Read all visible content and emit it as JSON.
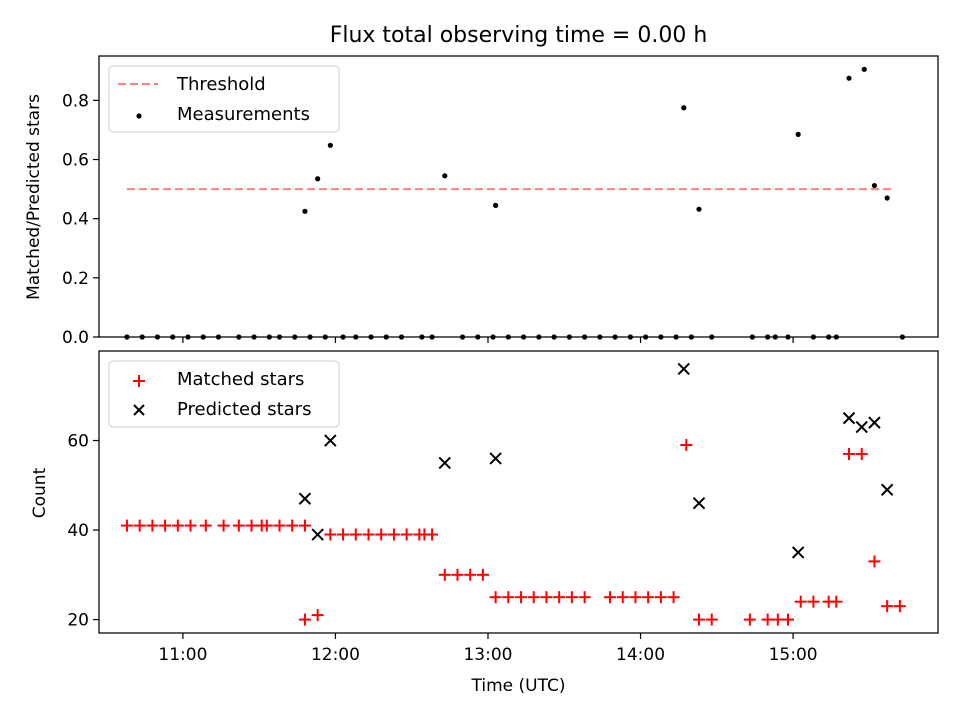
{
  "title": "Flux total observing time = 0.00 h",
  "chart_data": [
    {
      "type": "scatter",
      "ylabel": "Matched/Predicted stars",
      "ylim": [
        0,
        0.95
      ],
      "yticks": [
        0.0,
        0.2,
        0.4,
        0.6,
        0.8
      ],
      "ytick_labels": [
        "0.0",
        "0.2",
        "0.4",
        "0.6",
        "0.8"
      ],
      "legend": {
        "placement": "upper-left",
        "entries": [
          {
            "label": "Threshold",
            "style": "dashed-line",
            "color": "#ff7f7f"
          },
          {
            "label": "Measurements",
            "style": "dot",
            "color": "#000000"
          }
        ]
      },
      "threshold": {
        "name": "Threshold",
        "value": 0.5,
        "x_range": [
          "10:38",
          "15:40"
        ],
        "color": "#ff7f7f"
      },
      "series": [
        {
          "name": "Measurements",
          "marker": "dot",
          "color": "#000000",
          "points": [
            [
              "10:38",
              0
            ],
            [
              "10:44",
              0
            ],
            [
              "10:50",
              0
            ],
            [
              "10:56",
              0
            ],
            [
              "11:02",
              0
            ],
            [
              "11:08",
              0
            ],
            [
              "11:14",
              0
            ],
            [
              "11:22",
              0
            ],
            [
              "11:28",
              0
            ],
            [
              "11:34",
              0
            ],
            [
              "11:38",
              0
            ],
            [
              "11:44",
              0
            ],
            [
              "11:50",
              0
            ],
            [
              "11:56",
              0
            ],
            [
              "11:48",
              0.425
            ],
            [
              "11:53",
              0.535
            ],
            [
              "11:58",
              0.648
            ],
            [
              "12:03",
              0
            ],
            [
              "12:08",
              0
            ],
            [
              "12:14",
              0
            ],
            [
              "12:20",
              0
            ],
            [
              "12:26",
              0
            ],
            [
              "12:34",
              0
            ],
            [
              "12:38",
              0
            ],
            [
              "12:43",
              0.545
            ],
            [
              "12:50",
              0
            ],
            [
              "12:56",
              0
            ],
            [
              "13:02",
              0
            ],
            [
              "13:03",
              0.445
            ],
            [
              "13:08",
              0
            ],
            [
              "13:14",
              0
            ],
            [
              "13:20",
              0
            ],
            [
              "13:26",
              0
            ],
            [
              "13:32",
              0
            ],
            [
              "13:38",
              0
            ],
            [
              "13:44",
              0
            ],
            [
              "13:50",
              0
            ],
            [
              "13:56",
              0
            ],
            [
              "14:02",
              0
            ],
            [
              "14:08",
              0
            ],
            [
              "14:14",
              0
            ],
            [
              "14:20",
              0
            ],
            [
              "14:17",
              0.775
            ],
            [
              "14:23",
              0.432
            ],
            [
              "14:28",
              0
            ],
            [
              "14:44",
              0
            ],
            [
              "14:50",
              0
            ],
            [
              "14:53",
              0
            ],
            [
              "14:58",
              0
            ],
            [
              "15:02",
              0.685
            ],
            [
              "15:08",
              0
            ],
            [
              "15:14",
              0
            ],
            [
              "15:17",
              0
            ],
            [
              "15:22",
              0.875
            ],
            [
              "15:28",
              0.905
            ],
            [
              "15:32",
              0.512
            ],
            [
              "15:37",
              0.47
            ],
            [
              "15:43",
              0
            ]
          ]
        }
      ]
    },
    {
      "type": "scatter",
      "xlabel": "Time (UTC)",
      "ylabel": "Count",
      "ylim": [
        17,
        80
      ],
      "yticks": [
        20,
        40,
        60
      ],
      "ytick_labels": [
        "20",
        "40",
        "60"
      ],
      "xlim": [
        "10:27",
        "15:57"
      ],
      "xticks": [
        "11:00",
        "12:00",
        "13:00",
        "14:00",
        "15:00"
      ],
      "xtick_labels": [
        "11:00",
        "12:00",
        "13:00",
        "14:00",
        "15:00"
      ],
      "legend": {
        "placement": "upper-left",
        "entries": [
          {
            "label": "Matched stars",
            "style": "plus",
            "color": "#ff0000"
          },
          {
            "label": "Predicted stars",
            "style": "x",
            "color": "#000000"
          }
        ]
      },
      "series": [
        {
          "name": "Matched stars",
          "marker": "plus",
          "color": "#ff0000",
          "points": [
            [
              "10:38",
              41
            ],
            [
              "10:43",
              41
            ],
            [
              "10:48",
              41
            ],
            [
              "10:53",
              41
            ],
            [
              "10:58",
              41
            ],
            [
              "11:03",
              41
            ],
            [
              "11:09",
              41
            ],
            [
              "11:16",
              41
            ],
            [
              "11:22",
              41
            ],
            [
              "11:27",
              41
            ],
            [
              "11:31",
              41
            ],
            [
              "11:33",
              41
            ],
            [
              "11:38",
              41
            ],
            [
              "11:43",
              41
            ],
            [
              "11:48",
              41
            ],
            [
              "11:48",
              20
            ],
            [
              "11:53",
              21
            ],
            [
              "11:58",
              39
            ],
            [
              "12:03",
              39
            ],
            [
              "12:08",
              39
            ],
            [
              "12:13",
              39
            ],
            [
              "12:18",
              39
            ],
            [
              "12:23",
              39
            ],
            [
              "12:28",
              39
            ],
            [
              "12:33",
              39
            ],
            [
              "12:35",
              39
            ],
            [
              "12:38",
              39
            ],
            [
              "12:43",
              30
            ],
            [
              "12:48",
              30
            ],
            [
              "12:53",
              30
            ],
            [
              "12:58",
              30
            ],
            [
              "13:03",
              25
            ],
            [
              "13:08",
              25
            ],
            [
              "13:13",
              25
            ],
            [
              "13:18",
              25
            ],
            [
              "13:23",
              25
            ],
            [
              "13:28",
              25
            ],
            [
              "13:33",
              25
            ],
            [
              "13:38",
              25
            ],
            [
              "13:48",
              25
            ],
            [
              "13:53",
              25
            ],
            [
              "13:58",
              25
            ],
            [
              "14:03",
              25
            ],
            [
              "14:08",
              25
            ],
            [
              "14:13",
              25
            ],
            [
              "14:18",
              59
            ],
            [
              "14:23",
              20
            ],
            [
              "14:28",
              20
            ],
            [
              "14:43",
              20
            ],
            [
              "14:50",
              20
            ],
            [
              "14:54",
              20
            ],
            [
              "14:58",
              20
            ],
            [
              "15:03",
              24
            ],
            [
              "15:08",
              24
            ],
            [
              "15:14",
              24
            ],
            [
              "15:17",
              24
            ],
            [
              "15:22",
              57
            ],
            [
              "15:27",
              57
            ],
            [
              "15:32",
              33
            ],
            [
              "15:37",
              23
            ],
            [
              "15:42",
              23
            ]
          ]
        },
        {
          "name": "Predicted stars",
          "marker": "x",
          "color": "#000000",
          "points": [
            [
              "11:48",
              47
            ],
            [
              "11:53",
              39
            ],
            [
              "11:58",
              60
            ],
            [
              "12:43",
              55
            ],
            [
              "13:03",
              56
            ],
            [
              "14:17",
              76
            ],
            [
              "14:23",
              46
            ],
            [
              "15:02",
              35
            ],
            [
              "15:22",
              65
            ],
            [
              "15:27",
              63
            ],
            [
              "15:32",
              64
            ],
            [
              "15:37",
              49
            ]
          ]
        }
      ]
    }
  ]
}
